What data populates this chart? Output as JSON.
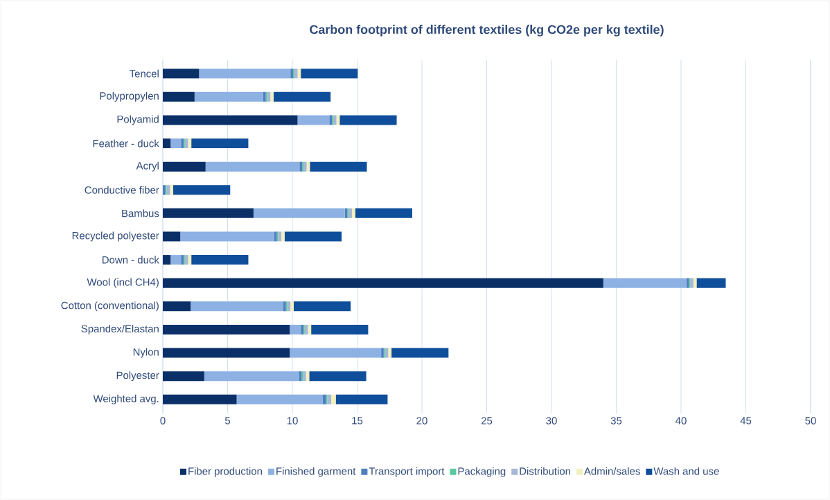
{
  "chart_data": {
    "type": "bar",
    "orientation": "horizontal",
    "stacked": true,
    "title": "Carbon footprint of different textiles (kg CO2e per kg textile)",
    "categories": [
      "Tencel",
      "Polypropylen",
      "Polyamid",
      "Feather - duck",
      "Acryl",
      "Conductive fiber",
      "Bambus",
      "Recycled polyester",
      "Down - duck",
      "Wool (incl CH4)",
      "Cotton (conventional)",
      "Spandex/Elastan",
      "Nylon",
      "Polyester",
      "Weighted avg."
    ],
    "series": [
      {
        "name": "Fiber production",
        "color": "#0b3068",
        "values": [
          2.8,
          2.45,
          10.4,
          0.6,
          3.3,
          0,
          7.0,
          1.35,
          0.6,
          34,
          2.15,
          9.8,
          9.8,
          3.2,
          5.7
        ]
      },
      {
        "name": "Finished garment",
        "color": "#8db1e3",
        "values": [
          7.05,
          5.3,
          2.45,
          0.8,
          7.25,
          0,
          7.05,
          7.25,
          0.8,
          6.4,
          7.15,
          0.85,
          7.05,
          7.3,
          6.65
        ]
      },
      {
        "name": "Transport import",
        "color": "#4f7fbf",
        "values": [
          0.2,
          0.2,
          0.2,
          0.2,
          0.2,
          0.2,
          0.2,
          0.2,
          0.2,
          0.2,
          0.2,
          0.2,
          0.2,
          0.2,
          0.25
        ]
      },
      {
        "name": "Packaging",
        "color": "#5bc8a0",
        "values": [
          0.1,
          0.1,
          0.1,
          0.1,
          0.1,
          0.1,
          0.1,
          0.1,
          0.1,
          0.1,
          0.1,
          0.1,
          0.1,
          0.1,
          0.1
        ]
      },
      {
        "name": "Distribution",
        "color": "#a6b8d6",
        "values": [
          0.25,
          0.25,
          0.25,
          0.25,
          0.25,
          0.25,
          0.25,
          0.25,
          0.25,
          0.25,
          0.25,
          0.25,
          0.25,
          0.25,
          0.3
        ]
      },
      {
        "name": "Admin/sales",
        "color": "#f3f0c0",
        "values": [
          0.25,
          0.25,
          0.25,
          0.25,
          0.25,
          0.25,
          0.25,
          0.25,
          0.25,
          0.25,
          0.25,
          0.25,
          0.25,
          0.25,
          0.35
        ]
      },
      {
        "name": "Wash and use",
        "color": "#0f4e9b",
        "values": [
          4.4,
          4.4,
          4.4,
          4.4,
          4.4,
          4.4,
          4.4,
          4.4,
          4.4,
          2.25,
          4.4,
          4.4,
          4.4,
          4.4,
          4.0
        ]
      }
    ],
    "xlim": [
      0,
      50
    ],
    "xticks": [
      0,
      5,
      10,
      15,
      20,
      25,
      30,
      35,
      40,
      45,
      50
    ],
    "grid": "x",
    "legend": "bottom"
  }
}
